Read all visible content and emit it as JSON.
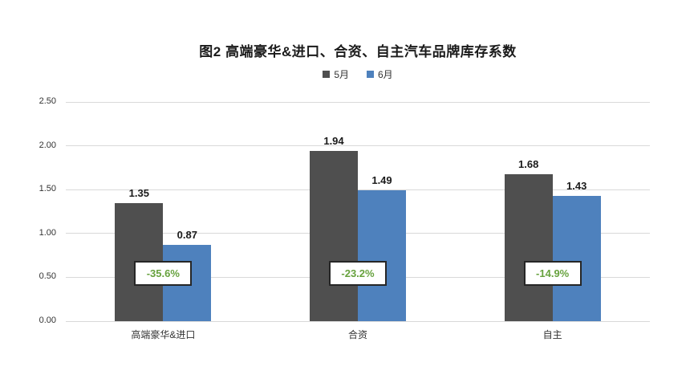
{
  "title": "图2  高端豪华&进口、合资、自主汽车品牌库存系数",
  "colors": {
    "series_may": "#4f4f4f",
    "series_june": "#4e81bd",
    "gridline": "#d9d9d9",
    "change_text": "#67a23e",
    "badge_border": "#262626",
    "badge_fill": "#ffffff",
    "text": "#1a1a1a"
  },
  "chart_data": {
    "type": "bar",
    "title": "图2  高端豪华&进口、合资、自主汽车品牌库存系数",
    "categories": [
      "高端豪华&进口",
      "合资",
      "自主"
    ],
    "series": [
      {
        "name": "5月",
        "color": "#4f4f4f",
        "values": [
          1.35,
          1.94,
          1.68
        ]
      },
      {
        "name": "6月",
        "color": "#4e81bd",
        "values": [
          0.87,
          1.49,
          1.43
        ]
      }
    ],
    "change_labels": [
      "-35.6%",
      "-23.2%",
      "-14.9%"
    ],
    "value_labels": [
      [
        "1.35",
        "1.94",
        "1.68"
      ],
      [
        "0.87",
        "1.49",
        "1.43"
      ]
    ],
    "xlabel": "",
    "ylabel": "",
    "ylim": [
      0,
      2.5
    ],
    "ytick_step": 0.5,
    "ytick_labels": [
      "0.00",
      "0.50",
      "1.00",
      "1.50",
      "2.00",
      "2.50"
    ],
    "grid": true,
    "legend_position": "top"
  }
}
